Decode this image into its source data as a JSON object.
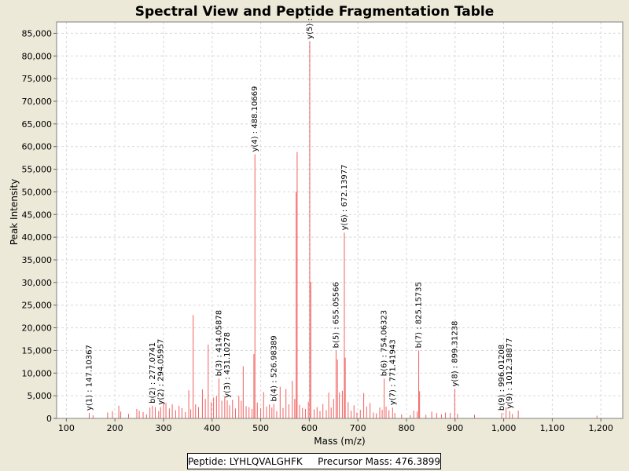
{
  "chart_data": {
    "type": "bar",
    "title": "Spectral View and Peptide Fragmentation Table",
    "xlabel": "Mass (m/z)",
    "ylabel": "Peak Intensity",
    "xlim": [
      80,
      1245
    ],
    "ylim": [
      0,
      87500
    ],
    "xticks": [
      100,
      200,
      300,
      400,
      500,
      600,
      700,
      800,
      900,
      1000,
      1100,
      1200
    ],
    "xtick_labels": [
      "100",
      "200",
      "300",
      "400",
      "500",
      "600",
      "700",
      "800",
      "900",
      "1,000",
      "1,100",
      "1,200"
    ],
    "yticks": [
      0,
      5000,
      10000,
      15000,
      20000,
      25000,
      30000,
      35000,
      40000,
      45000,
      50000,
      55000,
      60000,
      65000,
      70000,
      75000,
      80000,
      85000
    ],
    "ytick_labels": [
      "0",
      "5,000",
      "10,000",
      "15,000",
      "20,000",
      "25,000",
      "30,000",
      "35,000",
      "40,000",
      "45,000",
      "50,000",
      "55,000",
      "60,000",
      "65,000",
      "70,000",
      "75,000",
      "80,000",
      "85,000"
    ],
    "grid": true,
    "bar_color": "#f06060",
    "peaks": [
      [
        147.1,
        1200
      ],
      [
        155,
        700
      ],
      [
        185,
        1300
      ],
      [
        195,
        1600
      ],
      [
        208,
        2800
      ],
      [
        212,
        1500
      ],
      [
        228,
        1000
      ],
      [
        245,
        2100
      ],
      [
        250,
        1700
      ],
      [
        258,
        1400
      ],
      [
        265,
        900
      ],
      [
        272,
        2400
      ],
      [
        277.1,
        2800
      ],
      [
        283,
        2500
      ],
      [
        290,
        1600
      ],
      [
        294.1,
        2500
      ],
      [
        300,
        3500
      ],
      [
        305,
        3400
      ],
      [
        312,
        2200
      ],
      [
        318,
        3100
      ],
      [
        325,
        1800
      ],
      [
        332,
        2800
      ],
      [
        338,
        2300
      ],
      [
        345,
        1400
      ],
      [
        352,
        6200
      ],
      [
        356,
        2000
      ],
      [
        361,
        22800
      ],
      [
        366,
        3100
      ],
      [
        372,
        2500
      ],
      [
        380,
        6400
      ],
      [
        386,
        4300
      ],
      [
        392,
        16300
      ],
      [
        398,
        3600
      ],
      [
        403,
        4600
      ],
      [
        409,
        5000
      ],
      [
        414.1,
        8800
      ],
      [
        420,
        3900
      ],
      [
        426,
        4900
      ],
      [
        431.1,
        4000
      ],
      [
        436,
        2900
      ],
      [
        442,
        4100
      ],
      [
        448,
        2200
      ],
      [
        455,
        5000
      ],
      [
        460,
        3900
      ],
      [
        464,
        11500
      ],
      [
        470,
        2700
      ],
      [
        476,
        2500
      ],
      [
        482,
        2100
      ],
      [
        486,
        14200
      ],
      [
        488.1,
        58300
      ],
      [
        493,
        3500
      ],
      [
        500,
        2200
      ],
      [
        506,
        5800
      ],
      [
        512,
        2600
      ],
      [
        518,
        3100
      ],
      [
        523,
        2400
      ],
      [
        527,
        3200
      ],
      [
        533,
        1600
      ],
      [
        540,
        7000
      ],
      [
        546,
        2300
      ],
      [
        552,
        6500
      ],
      [
        558,
        3100
      ],
      [
        565,
        8300
      ],
      [
        570,
        4300
      ],
      [
        573,
        50000
      ],
      [
        575,
        58800
      ],
      [
        580,
        3000
      ],
      [
        586,
        2300
      ],
      [
        592,
        2100
      ],
      [
        598,
        3700
      ],
      [
        601,
        83200
      ],
      [
        603,
        30100
      ],
      [
        610,
        2000
      ],
      [
        616,
        2500
      ],
      [
        622,
        1600
      ],
      [
        628,
        3200
      ],
      [
        635,
        1800
      ],
      [
        640,
        5700
      ],
      [
        645,
        2400
      ],
      [
        650,
        4300
      ],
      [
        655.1,
        15000
      ],
      [
        658,
        13000
      ],
      [
        662,
        5700
      ],
      [
        668,
        6100
      ],
      [
        672.1,
        41000
      ],
      [
        674,
        13400
      ],
      [
        680,
        3600
      ],
      [
        686,
        1700
      ],
      [
        692,
        2900
      ],
      [
        698,
        1300
      ],
      [
        705,
        1900
      ],
      [
        712,
        5600
      ],
      [
        718,
        2600
      ],
      [
        725,
        3400
      ],
      [
        732,
        1300
      ],
      [
        738,
        1100
      ],
      [
        745,
        2400
      ],
      [
        750,
        1900
      ],
      [
        754.1,
        8800
      ],
      [
        758,
        2600
      ],
      [
        764,
        1800
      ],
      [
        771.4,
        2400
      ],
      [
        776,
        1200
      ],
      [
        790,
        900
      ],
      [
        808,
        700
      ],
      [
        815,
        1700
      ],
      [
        822,
        1500
      ],
      [
        825.2,
        15000
      ],
      [
        827,
        6000
      ],
      [
        840,
        800
      ],
      [
        852,
        1500
      ],
      [
        862,
        1200
      ],
      [
        872,
        900
      ],
      [
        880,
        1300
      ],
      [
        890,
        1200
      ],
      [
        899.3,
        6500
      ],
      [
        905,
        1000
      ],
      [
        940,
        800
      ],
      [
        996,
        1200
      ],
      [
        1005,
        2400
      ],
      [
        1012.4,
        1600
      ],
      [
        1018,
        1000
      ],
      [
        1030,
        1700
      ],
      [
        1192,
        600
      ]
    ],
    "annotations": [
      {
        "x": 147.1,
        "y": 1200,
        "text": "y(1) : 147.10367"
      },
      {
        "x": 277.1,
        "y": 2800,
        "text": "b(2) : 277.0741"
      },
      {
        "x": 294.1,
        "y": 2500,
        "text": "y(2) : 294.05957"
      },
      {
        "x": 414.1,
        "y": 8800,
        "text": "b(3) : 414.05878"
      },
      {
        "x": 431.1,
        "y": 4000,
        "text": "y(3) : 431.10278"
      },
      {
        "x": 488.1,
        "y": 58300,
        "text": "y(4) : 488.10669"
      },
      {
        "x": 527,
        "y": 3200,
        "text": "b(4) : 526.98389"
      },
      {
        "x": 601,
        "y": 83200,
        "text": "y(5) :"
      },
      {
        "x": 655.1,
        "y": 15000,
        "text": "b(5) : 655.05566"
      },
      {
        "x": 672.1,
        "y": 41000,
        "text": "y(6) : 672.13977"
      },
      {
        "x": 754.1,
        "y": 8800,
        "text": "b(6) : 754.06323"
      },
      {
        "x": 771.4,
        "y": 2400,
        "text": "y(7) : 771.41943"
      },
      {
        "x": 825.2,
        "y": 15000,
        "text": "b(7) : 825.15735"
      },
      {
        "x": 899.3,
        "y": 6500,
        "text": "y(8) : 899.31238"
      },
      {
        "x": 996,
        "y": 1200,
        "text": "b(9) : 996.01208"
      },
      {
        "x": 1012.4,
        "y": 1600,
        "text": "y(9) : 1012.38877"
      }
    ]
  },
  "legend": {
    "peptide": "Peptide: LYHLQVALGHFK",
    "precursor": "Precursor Mass: 476.3899"
  }
}
